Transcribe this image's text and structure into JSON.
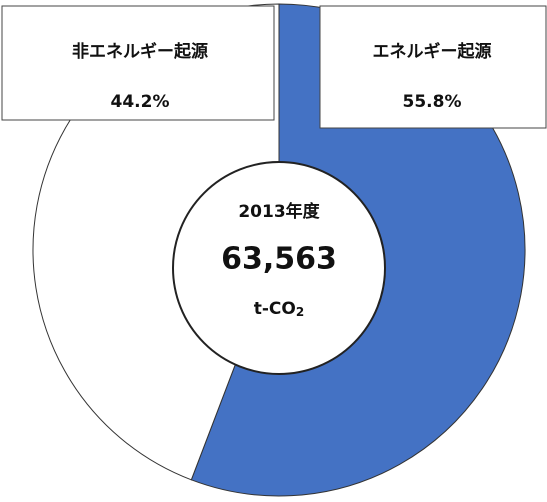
{
  "chart_data": {
    "type": "pie",
    "categories": [
      "エネルギー起源",
      "非エネルギー起源"
    ],
    "values": [
      55.8,
      44.2
    ],
    "value_labels": [
      "55.8%",
      "44.2%"
    ],
    "colors": [
      "#4472c4",
      "#ffffff"
    ],
    "center_year": "2013年度",
    "center_total": "63,563",
    "center_unit": "t-CO",
    "center_unit_subscript": "2"
  }
}
